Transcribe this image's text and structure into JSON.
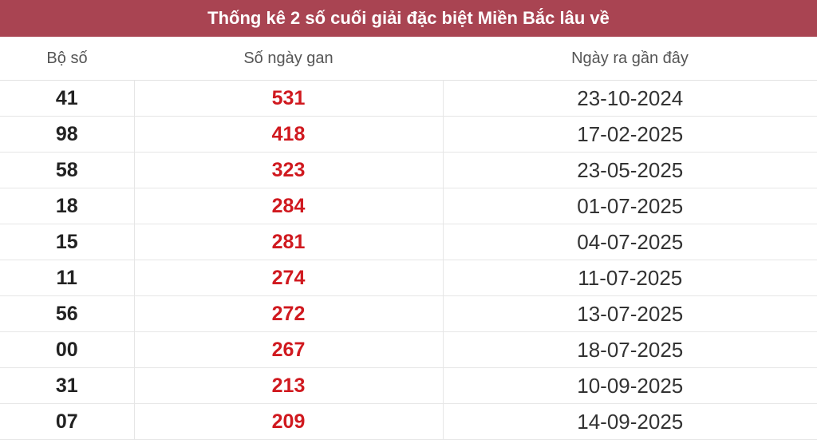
{
  "title": "Thống kê 2 số cuối giải đặc biệt Miền Bắc lâu về",
  "colors": {
    "header_bg": "#a94452",
    "gan_red": "#d0191f"
  },
  "columns": [
    "Bộ số",
    "Số ngày gan",
    "Ngày ra gần đây"
  ],
  "rows": [
    {
      "bo_so": "41",
      "so_ngay_gan": "531",
      "ngay_ra": "23-10-2024"
    },
    {
      "bo_so": "98",
      "so_ngay_gan": "418",
      "ngay_ra": "17-02-2025"
    },
    {
      "bo_so": "58",
      "so_ngay_gan": "323",
      "ngay_ra": "23-05-2025"
    },
    {
      "bo_so": "18",
      "so_ngay_gan": "284",
      "ngay_ra": "01-07-2025"
    },
    {
      "bo_so": "15",
      "so_ngay_gan": "281",
      "ngay_ra": "04-07-2025"
    },
    {
      "bo_so": "11",
      "so_ngay_gan": "274",
      "ngay_ra": "11-07-2025"
    },
    {
      "bo_so": "56",
      "so_ngay_gan": "272",
      "ngay_ra": "13-07-2025"
    },
    {
      "bo_so": "00",
      "so_ngay_gan": "267",
      "ngay_ra": "18-07-2025"
    },
    {
      "bo_so": "31",
      "so_ngay_gan": "213",
      "ngay_ra": "10-09-2025"
    },
    {
      "bo_so": "07",
      "so_ngay_gan": "209",
      "ngay_ra": "14-09-2025"
    }
  ]
}
